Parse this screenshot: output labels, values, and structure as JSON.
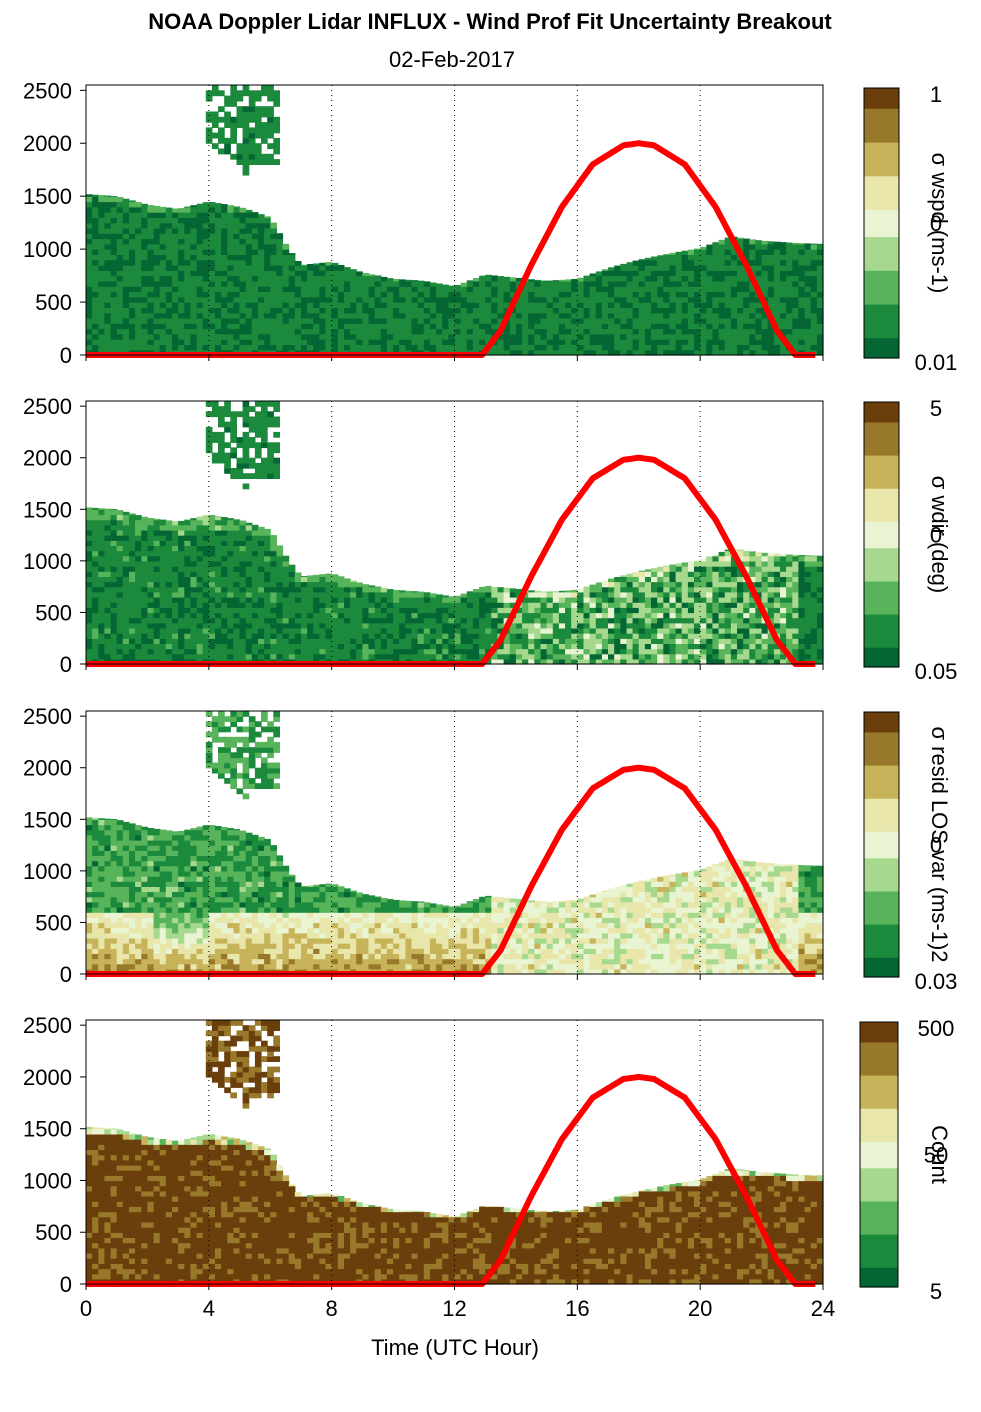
{
  "title": "NOAA Doppler Lidar INFLUX - Wind Prof Fit Uncertainty Breakout",
  "subtitle": "02-Feb-2017",
  "colors": {
    "sun_curve": "#ff0000",
    "colormap": [
      "#046633",
      "#1c8a3c",
      "#58b45a",
      "#a6d88e",
      "#e9f5d2",
      "#e8e6aa",
      "#c7b45a",
      "#98782a",
      "#6a3f0c"
    ]
  },
  "chart_data": {
    "type": "heatmap",
    "xlabel": "Time (UTC Hour)",
    "x_ticks": [
      "0",
      "4",
      "8",
      "12",
      "16",
      "20",
      "24"
    ],
    "xlim": [
      0,
      24
    ],
    "y_ticks": [
      "0",
      "500",
      "1000",
      "1500",
      "2000",
      "2500"
    ],
    "ylim": [
      0,
      2550
    ],
    "grid": "vertical dotted lines every 4 hours",
    "sun_elevation_curve": {
      "x": [
        0,
        12.9,
        13.5,
        14.5,
        15.5,
        16.5,
        17.5,
        18,
        18.5,
        19.5,
        20.5,
        21.5,
        22.5,
        23.1,
        23.8
      ],
      "y": [
        0,
        0,
        230,
        850,
        1400,
        1800,
        1980,
        2000,
        1980,
        1800,
        1400,
        850,
        230,
        0,
        0
      ]
    },
    "panels": [
      {
        "colorbar_label": "σ wspd (ms-1)",
        "colorbar_ticks": [
          "1",
          "0",
          "0.01"
        ],
        "variant": "wspd",
        "top_profile": {
          "x": [
            0,
            1,
            2,
            3,
            4,
            5,
            6,
            6.6,
            7,
            8,
            9,
            10,
            11,
            12,
            13,
            14,
            15,
            16,
            17,
            18,
            19,
            20,
            21,
            22,
            23,
            23.8
          ],
          "y": [
            1520,
            1500,
            1420,
            1380,
            1450,
            1400,
            1300,
            1000,
            850,
            880,
            780,
            720,
            700,
            650,
            760,
            730,
            700,
            720,
            820,
            900,
            960,
            1010,
            1120,
            1080,
            1060,
            1050
          ]
        }
      },
      {
        "colorbar_label": "σ wdir (deg)",
        "colorbar_ticks": [
          "5",
          "0",
          "0.05"
        ],
        "variant": "wdir",
        "top_profile": {
          "x": [
            0,
            1,
            2,
            3,
            4,
            5,
            6,
            6.6,
            7,
            8,
            9,
            10,
            11,
            12,
            13,
            14,
            15,
            16,
            17,
            18,
            19,
            20,
            21,
            22,
            23,
            23.8
          ],
          "y": [
            1520,
            1500,
            1420,
            1380,
            1450,
            1400,
            1300,
            1000,
            850,
            880,
            780,
            720,
            700,
            650,
            760,
            730,
            700,
            720,
            820,
            900,
            960,
            1010,
            1120,
            1080,
            1060,
            1050
          ]
        }
      },
      {
        "colorbar_label": "σ resid LOS var (ms-1)2",
        "colorbar_ticks": [
          "0",
          "0.03"
        ],
        "variant": "resid",
        "top_profile": {
          "x": [
            0,
            1,
            2,
            3,
            4,
            5,
            6,
            6.6,
            7,
            8,
            9,
            10,
            11,
            12,
            13,
            14,
            15,
            16,
            17,
            18,
            19,
            20,
            21,
            22,
            23,
            23.8
          ],
          "y": [
            1520,
            1500,
            1420,
            1380,
            1450,
            1400,
            1300,
            1000,
            850,
            880,
            780,
            720,
            700,
            650,
            760,
            730,
            700,
            720,
            820,
            900,
            960,
            1010,
            1120,
            1080,
            1060,
            1050
          ]
        }
      },
      {
        "colorbar_label": "Count",
        "colorbar_ticks": [
          "500",
          "50",
          "5"
        ],
        "variant": "count",
        "top_profile": {
          "x": [
            0,
            1,
            2,
            3,
            4,
            5,
            6,
            6.6,
            7,
            8,
            9,
            10,
            11,
            12,
            13,
            14,
            15,
            16,
            17,
            18,
            19,
            20,
            21,
            22,
            23,
            23.8
          ],
          "y": [
            1520,
            1500,
            1420,
            1380,
            1450,
            1400,
            1300,
            1000,
            850,
            880,
            780,
            720,
            700,
            650,
            760,
            730,
            700,
            720,
            820,
            900,
            960,
            1010,
            1120,
            1080,
            1060,
            1050
          ]
        }
      }
    ]
  }
}
